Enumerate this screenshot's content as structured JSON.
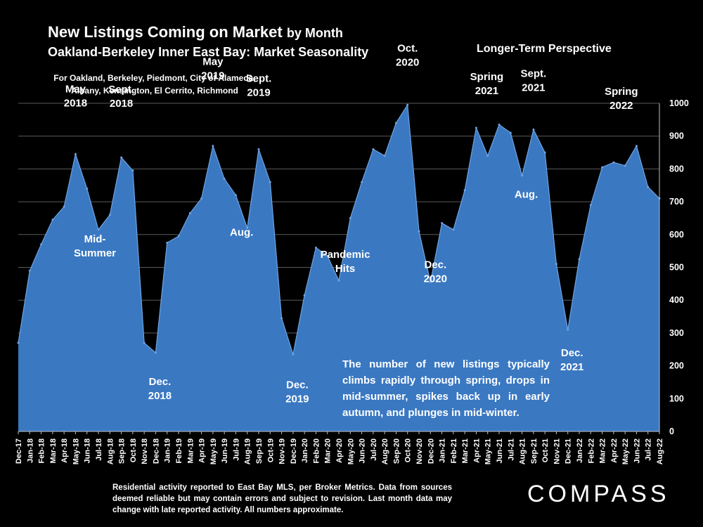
{
  "header": {
    "title": "New Listings Coming on Market",
    "title_suffix": "by Month",
    "subtitle": "Oakland-Berkeley Inner East Bay: Market Seasonality",
    "perspective": "Longer-Term Perspective",
    "areas_line1": "For Oakland, Berkeley, Piedmont, City of Alameda,",
    "areas_line2": "Albany, Kensington, El Cerrito, Richmond"
  },
  "chart_data": {
    "type": "area",
    "title": "New Listings Coming on Market by Month",
    "series_color": "#3a78c2",
    "ylim": [
      0,
      1000
    ],
    "yticks": [
      0,
      100,
      200,
      300,
      400,
      500,
      600,
      700,
      800,
      900,
      1000
    ],
    "y_axis_position": "right",
    "categories": [
      "Dec-17",
      "Jan-18",
      "Feb-18",
      "Mar-18",
      "Apr-18",
      "May-18",
      "Jun-18",
      "Jul-18",
      "Aug-18",
      "Sep-18",
      "Oct-18",
      "Nov-18",
      "Dec-18",
      "Jan-19",
      "Feb-19",
      "Mar-19",
      "Apr-19",
      "May-19",
      "Jun-19",
      "Jul-19",
      "Aug-19",
      "Sep-19",
      "Oct-19",
      "Nov-19",
      "Dec-19",
      "Jan-20",
      "Feb-20",
      "Mar-20",
      "Apr-20",
      "May-20",
      "Jun-20",
      "Jul-20",
      "Aug-20",
      "Sep-20",
      "Oct-20",
      "Nov-20",
      "Dec-20",
      "Jan-21",
      "Feb-21",
      "Mar-21",
      "Apr-21",
      "May-21",
      "Jun-21",
      "Jul-21",
      "Aug-21",
      "Sep-21",
      "Oct-21",
      "Nov-21",
      "Dec-21",
      "Jan-22",
      "Feb-22",
      "Mar-22",
      "Apr-22",
      "May-22",
      "Jun-22",
      "Jul-22",
      "Aug-22"
    ],
    "values": [
      270,
      490,
      570,
      645,
      685,
      845,
      740,
      615,
      660,
      835,
      795,
      270,
      240,
      575,
      595,
      665,
      710,
      870,
      770,
      720,
      620,
      860,
      760,
      345,
      235,
      415,
      560,
      535,
      460,
      650,
      760,
      860,
      840,
      940,
      995,
      610,
      455,
      635,
      615,
      735,
      925,
      840,
      935,
      910,
      780,
      920,
      850,
      510,
      310,
      525,
      690,
      805,
      820,
      810,
      870,
      745,
      710
    ],
    "annotations": [
      {
        "lines": [
          "May",
          "2018"
        ],
        "category": "May-18",
        "value": 845
      },
      {
        "lines": [
          "Sept.",
          "2018"
        ],
        "category": "Sep-18",
        "value": 835
      },
      {
        "lines": [
          "Mid-",
          "Summer"
        ],
        "category": "Jul-18",
        "value": 615
      },
      {
        "lines": [
          "Dec.",
          "2018"
        ],
        "category": "Dec-18",
        "value": 240
      },
      {
        "lines": [
          "May",
          "2019"
        ],
        "category": "May-19",
        "value": 870
      },
      {
        "lines": [
          "Sept.",
          "2019"
        ],
        "category": "Sep-19",
        "value": 860
      },
      {
        "lines": [
          "Aug."
        ],
        "category": "Aug-19",
        "value": 620
      },
      {
        "lines": [
          "Dec.",
          "2019"
        ],
        "category": "Dec-19",
        "value": 235
      },
      {
        "lines": [
          "Pandemic",
          "Hits"
        ],
        "category": "Apr-20",
        "value": 460
      },
      {
        "lines": [
          "Oct.",
          "2020"
        ],
        "category": "Oct-20",
        "value": 995
      },
      {
        "lines": [
          "Dec.",
          "2020"
        ],
        "category": "Dec-20",
        "value": 455
      },
      {
        "lines": [
          "Spring",
          "2021"
        ],
        "category": "Apr-21",
        "value": 925
      },
      {
        "lines": [
          "Sept.",
          "2021"
        ],
        "category": "Sep-21",
        "value": 920
      },
      {
        "lines": [
          "Aug."
        ],
        "category": "Aug-21",
        "value": 780
      },
      {
        "lines": [
          "Dec.",
          "2021"
        ],
        "category": "Dec-21",
        "value": 310
      },
      {
        "lines": [
          "Spring",
          "2022"
        ],
        "category": "Apr-22",
        "value": 820
      }
    ]
  },
  "note": "The number of new listings typically climbs rapidly through spring, drops in mid-summer, spikes back up in early autumn, and plunges in mid-winter.",
  "footnote": "Residential activity reported to East Bay MLS, per Broker Metrics. Data from sources deemed reliable but may contain errors and subject to revision. Last month data may change with late reported activity. All numbers approximate.",
  "logo": "COMPASS"
}
